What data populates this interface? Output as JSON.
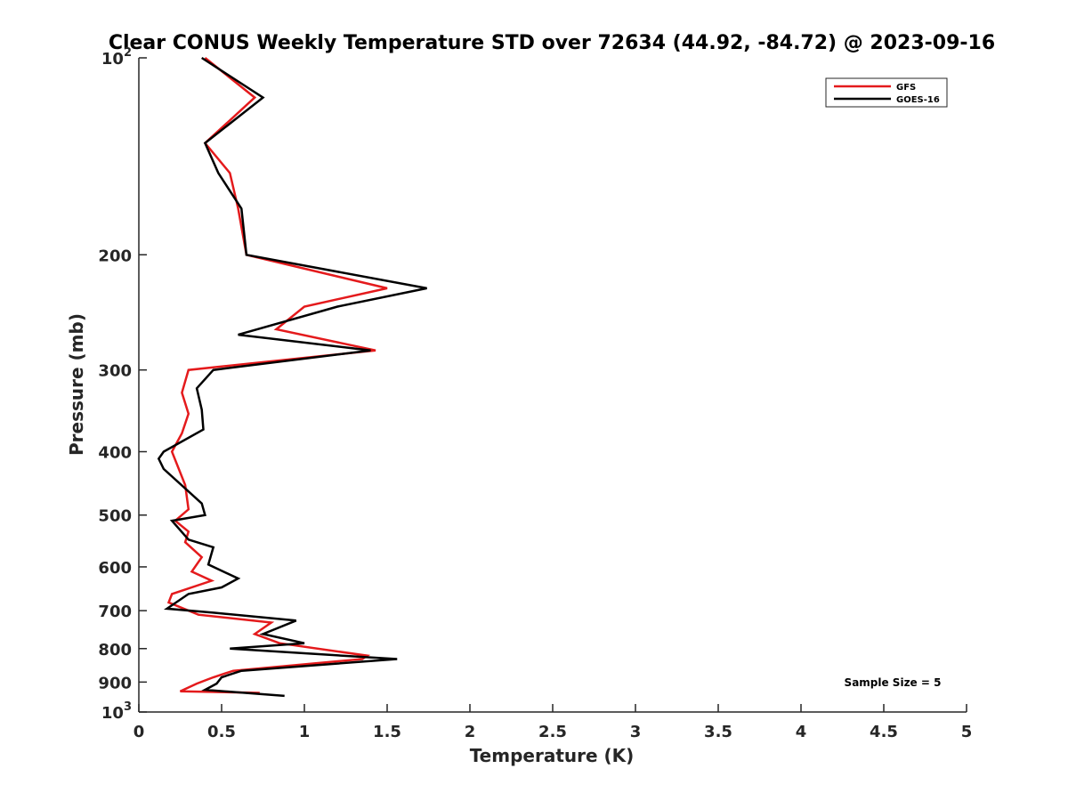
{
  "chart_data": {
    "type": "line",
    "title": "Clear CONUS Weekly Temperature STD over 72634 (44.92, -84.72) @ 2023-09-16",
    "xlabel": "Temperature (K)",
    "ylabel": "Pressure (mb)",
    "xlim": [
      0,
      5
    ],
    "ylim": [
      100,
      1000
    ],
    "y_scale": "log",
    "y_reversed": true,
    "x_ticks": [
      "0",
      "0.5",
      "1",
      "1.5",
      "2",
      "2.5",
      "3",
      "3.5",
      "4",
      "4.5",
      "5"
    ],
    "y_ticks": [
      {
        "value": 100,
        "base": "10",
        "exp": "2"
      },
      {
        "value": 200,
        "label": "200"
      },
      {
        "value": 300,
        "label": "300"
      },
      {
        "value": 400,
        "label": "400"
      },
      {
        "value": 500,
        "label": "500"
      },
      {
        "value": 600,
        "label": "600"
      },
      {
        "value": 700,
        "label": "700"
      },
      {
        "value": 800,
        "label": "800"
      },
      {
        "value": 900,
        "label": "900"
      },
      {
        "value": 1000,
        "base": "10",
        "exp": "3"
      }
    ],
    "grid": false,
    "legend_position": "top-right",
    "annotation": "Sample Size = 5",
    "series": [
      {
        "name": "GFS",
        "color": "#e41a1c",
        "points": [
          [
            0.4,
            100
          ],
          [
            0.7,
            115
          ],
          [
            0.4,
            135
          ],
          [
            0.55,
            150
          ],
          [
            0.6,
            170
          ],
          [
            0.65,
            200
          ],
          [
            1.5,
            225
          ],
          [
            1.0,
            240
          ],
          [
            0.83,
            260
          ],
          [
            1.43,
            280
          ],
          [
            0.3,
            300
          ],
          [
            0.26,
            325
          ],
          [
            0.3,
            350
          ],
          [
            0.26,
            375
          ],
          [
            0.2,
            400
          ],
          [
            0.28,
            450
          ],
          [
            0.3,
            490
          ],
          [
            0.22,
            510
          ],
          [
            0.3,
            530
          ],
          [
            0.28,
            550
          ],
          [
            0.38,
            580
          ],
          [
            0.32,
            610
          ],
          [
            0.44,
            630
          ],
          [
            0.2,
            660
          ],
          [
            0.18,
            680
          ],
          [
            0.36,
            710
          ],
          [
            0.8,
            730
          ],
          [
            0.7,
            760
          ],
          [
            0.85,
            785
          ],
          [
            1.38,
            820
          ],
          [
            1.35,
            830
          ],
          [
            0.57,
            865
          ],
          [
            0.45,
            885
          ],
          [
            0.35,
            905
          ],
          [
            0.25,
            930
          ],
          [
            0.73,
            935
          ]
        ]
      },
      {
        "name": "GOES-16",
        "color": "#000000",
        "points": [
          [
            0.38,
            100
          ],
          [
            0.75,
            115
          ],
          [
            0.4,
            135
          ],
          [
            0.48,
            150
          ],
          [
            0.62,
            170
          ],
          [
            0.65,
            200
          ],
          [
            1.74,
            225
          ],
          [
            1.2,
            240
          ],
          [
            0.6,
            265
          ],
          [
            1.4,
            280
          ],
          [
            0.45,
            300
          ],
          [
            0.35,
            320
          ],
          [
            0.38,
            345
          ],
          [
            0.39,
            370
          ],
          [
            0.15,
            400
          ],
          [
            0.12,
            410
          ],
          [
            0.15,
            425
          ],
          [
            0.38,
            480
          ],
          [
            0.4,
            500
          ],
          [
            0.2,
            510
          ],
          [
            0.3,
            545
          ],
          [
            0.45,
            560
          ],
          [
            0.42,
            595
          ],
          [
            0.6,
            625
          ],
          [
            0.5,
            645
          ],
          [
            0.3,
            660
          ],
          [
            0.17,
            695
          ],
          [
            0.45,
            705
          ],
          [
            0.95,
            725
          ],
          [
            0.75,
            760
          ],
          [
            1.0,
            785
          ],
          [
            0.55,
            800
          ],
          [
            1.56,
            830
          ],
          [
            0.62,
            865
          ],
          [
            0.5,
            885
          ],
          [
            0.47,
            905
          ],
          [
            0.4,
            925
          ],
          [
            0.88,
            945
          ]
        ]
      }
    ]
  }
}
